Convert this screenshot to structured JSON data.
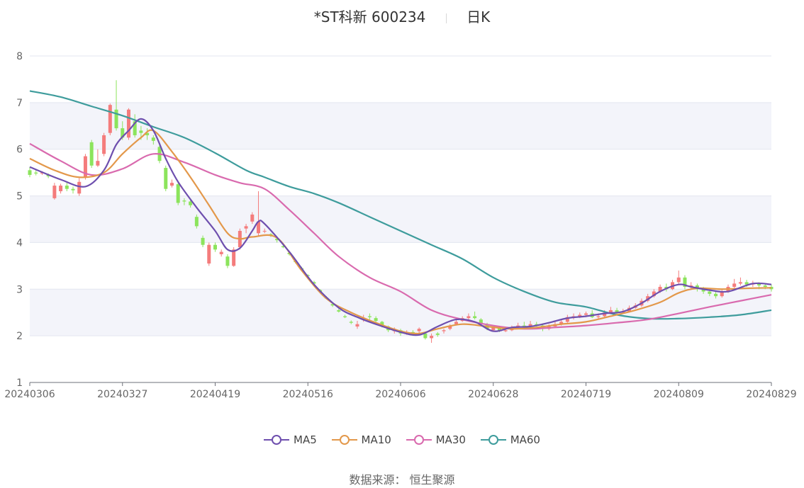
{
  "header": {
    "stock_name": "*ST科新 600234",
    "period": "日K"
  },
  "footer": {
    "source_label": "数据来源：",
    "source_name": "恒生聚源"
  },
  "colors": {
    "up": "#F47C7C",
    "down": "#8CE45C",
    "ma5": "#6E4FAE",
    "ma10": "#E3984A",
    "ma30": "#D96AAE",
    "ma60": "#3E9C9C",
    "band": "#F3F4FA",
    "grid": "#E3E6F0"
  },
  "chart_data": {
    "type": "candlestick",
    "title": "*ST科新 600234 日K",
    "ylim": [
      1,
      8
    ],
    "yticks": [
      1,
      2,
      3,
      4,
      5,
      6,
      7,
      8
    ],
    "xticks": [
      "20240306",
      "20240327",
      "20240419",
      "20240516",
      "20240606",
      "20240628",
      "20240719",
      "20240809",
      "20240829"
    ],
    "xtick_index": [
      0,
      15,
      30,
      45,
      60,
      75,
      90,
      105,
      120
    ],
    "legend": [
      "MA5",
      "MA10",
      "MA30",
      "MA60"
    ],
    "candles": [
      [
        5.55,
        5.45,
        5.62,
        5.4
      ],
      [
        5.5,
        5.48,
        5.55,
        5.44
      ],
      [
        5.48,
        5.5,
        5.53,
        5.45
      ],
      [
        5.45,
        5.42,
        5.48,
        5.38
      ],
      [
        4.95,
        5.22,
        5.28,
        4.92
      ],
      [
        5.1,
        5.22,
        5.26,
        5.05
      ],
      [
        5.22,
        5.15,
        5.28,
        5.1
      ],
      [
        5.15,
        5.12,
        5.2,
        5.05
      ],
      [
        5.05,
        5.3,
        5.38,
        5.0
      ],
      [
        5.4,
        5.85,
        5.9,
        5.35
      ],
      [
        6.15,
        5.65,
        6.2,
        5.6
      ],
      [
        5.65,
        5.75,
        6.0,
        5.62
      ],
      [
        5.9,
        6.3,
        6.35,
        5.85
      ],
      [
        6.35,
        6.95,
        6.98,
        6.3
      ],
      [
        6.85,
        6.45,
        7.48,
        6.4
      ],
      [
        6.45,
        6.25,
        6.6,
        6.2
      ],
      [
        6.25,
        6.85,
        6.88,
        6.2
      ],
      [
        6.6,
        6.3,
        6.75,
        6.25
      ],
      [
        6.4,
        6.35,
        6.5,
        6.2
      ],
      [
        6.35,
        6.3,
        6.45,
        6.2
      ],
      [
        6.25,
        6.18,
        6.3,
        6.1
      ],
      [
        6.05,
        5.75,
        6.1,
        5.7
      ],
      [
        5.6,
        5.15,
        5.65,
        5.1
      ],
      [
        5.22,
        5.28,
        5.35,
        5.18
      ],
      [
        5.25,
        4.85,
        5.3,
        4.8
      ],
      [
        4.9,
        4.88,
        4.95,
        4.8
      ],
      [
        4.88,
        4.8,
        4.95,
        4.75
      ],
      [
        4.55,
        4.35,
        4.6,
        4.3
      ],
      [
        4.1,
        3.95,
        4.15,
        3.9
      ],
      [
        3.55,
        3.95,
        4.0,
        3.5
      ],
      [
        3.95,
        3.85,
        4.0,
        3.8
      ],
      [
        3.75,
        3.8,
        3.85,
        3.7
      ],
      [
        3.7,
        3.5,
        3.75,
        3.45
      ],
      [
        3.5,
        3.85,
        3.9,
        3.48
      ],
      [
        3.9,
        4.25,
        4.3,
        3.85
      ],
      [
        4.3,
        4.35,
        4.4,
        4.2
      ],
      [
        4.45,
        4.6,
        4.65,
        4.4
      ],
      [
        4.2,
        4.45,
        5.1,
        4.15
      ],
      [
        4.25,
        4.25,
        4.3,
        4.2
      ],
      [
        4.18,
        4.15,
        4.2,
        4.12
      ],
      [
        4.08,
        4.05,
        4.1,
        4.0
      ],
      [
        3.92,
        3.9,
        3.95,
        3.88
      ],
      [
        3.78,
        3.75,
        3.8,
        3.72
      ],
      [
        3.6,
        3.58,
        3.62,
        3.55
      ],
      [
        3.45,
        3.42,
        3.48,
        3.4
      ],
      [
        3.3,
        3.28,
        3.32,
        3.25
      ],
      [
        3.15,
        3.12,
        3.18,
        3.1
      ],
      [
        2.98,
        2.95,
        3.0,
        2.92
      ],
      [
        2.82,
        2.8,
        2.85,
        2.78
      ],
      [
        2.68,
        2.65,
        2.7,
        2.62
      ],
      [
        2.55,
        2.52,
        2.58,
        2.5
      ],
      [
        2.42,
        2.4,
        2.45,
        2.38
      ],
      [
        2.3,
        2.28,
        2.33,
        2.25
      ],
      [
        2.2,
        2.25,
        2.32,
        2.15
      ],
      [
        2.35,
        2.38,
        2.45,
        2.3
      ],
      [
        2.42,
        2.4,
        2.48,
        2.35
      ],
      [
        2.38,
        2.32,
        2.42,
        2.28
      ],
      [
        2.3,
        2.22,
        2.32,
        2.18
      ],
      [
        2.2,
        2.12,
        2.22,
        2.08
      ],
      [
        2.1,
        2.15,
        2.18,
        2.05
      ],
      [
        2.12,
        2.05,
        2.15,
        2.0
      ],
      [
        2.05,
        2.08,
        2.12,
        2.02
      ],
      [
        2.08,
        2.05,
        2.12,
        2.0
      ],
      [
        2.1,
        2.15,
        2.18,
        2.05
      ],
      [
        2.05,
        1.95,
        2.08,
        1.92
      ],
      [
        1.95,
        2.0,
        2.05,
        1.85
      ],
      [
        2.05,
        2.02,
        2.08,
        1.98
      ],
      [
        2.1,
        2.12,
        2.15,
        2.05
      ],
      [
        2.15,
        2.22,
        2.25,
        2.12
      ],
      [
        2.25,
        2.3,
        2.35,
        2.22
      ],
      [
        2.32,
        2.38,
        2.42,
        2.3
      ],
      [
        2.38,
        2.42,
        2.48,
        2.35
      ],
      [
        2.42,
        2.38,
        2.52,
        2.35
      ],
      [
        2.35,
        2.25,
        2.38,
        2.22
      ],
      [
        2.25,
        2.15,
        2.28,
        2.12
      ],
      [
        2.12,
        2.18,
        2.22,
        2.1
      ],
      [
        2.18,
        2.1,
        2.2,
        2.08
      ],
      [
        2.1,
        2.12,
        2.15,
        2.08
      ],
      [
        2.12,
        2.18,
        2.22,
        2.1
      ],
      [
        2.18,
        2.22,
        2.28,
        2.15
      ],
      [
        2.22,
        2.2,
        2.3,
        2.18
      ],
      [
        2.2,
        2.25,
        2.32,
        2.18
      ],
      [
        2.25,
        2.22,
        2.3,
        2.2
      ],
      [
        2.22,
        2.15,
        2.25,
        2.1
      ],
      [
        2.15,
        2.2,
        2.25,
        2.12
      ],
      [
        2.2,
        2.25,
        2.3,
        2.18
      ],
      [
        2.25,
        2.3,
        2.35,
        2.22
      ],
      [
        2.3,
        2.4,
        2.45,
        2.28
      ],
      [
        2.4,
        2.42,
        2.48,
        2.35
      ],
      [
        2.42,
        2.45,
        2.5,
        2.38
      ],
      [
        2.45,
        2.48,
        2.52,
        2.4
      ],
      [
        2.48,
        2.4,
        2.55,
        2.38
      ],
      [
        2.4,
        2.42,
        2.48,
        2.35
      ],
      [
        2.42,
        2.5,
        2.55,
        2.4
      ],
      [
        2.5,
        2.55,
        2.62,
        2.48
      ],
      [
        2.55,
        2.5,
        2.6,
        2.45
      ],
      [
        2.5,
        2.52,
        2.58,
        2.48
      ],
      [
        2.52,
        2.6,
        2.65,
        2.5
      ],
      [
        2.6,
        2.65,
        2.7,
        2.58
      ],
      [
        2.65,
        2.75,
        2.8,
        2.62
      ],
      [
        2.75,
        2.85,
        2.9,
        2.72
      ],
      [
        2.85,
        2.95,
        3.0,
        2.82
      ],
      [
        2.95,
        3.05,
        3.1,
        2.92
      ],
      [
        3.05,
        3.0,
        3.12,
        2.95
      ],
      [
        3.0,
        3.15,
        3.2,
        2.98
      ],
      [
        3.15,
        3.25,
        3.4,
        3.1
      ],
      [
        3.25,
        3.05,
        3.3,
        3.0
      ],
      [
        3.05,
        3.08,
        3.15,
        3.0
      ],
      [
        3.08,
        3.0,
        3.12,
        2.95
      ],
      [
        3.0,
        2.95,
        3.05,
        2.9
      ],
      [
        2.95,
        2.9,
        3.0,
        2.85
      ],
      [
        2.9,
        2.85,
        2.95,
        2.8
      ],
      [
        2.85,
        2.95,
        3.0,
        2.82
      ],
      [
        2.95,
        3.05,
        3.1,
        2.92
      ],
      [
        3.05,
        3.12,
        3.22,
        3.0
      ],
      [
        3.12,
        3.15,
        3.25,
        3.08
      ],
      [
        3.15,
        3.1,
        3.2,
        3.05
      ],
      [
        3.1,
        3.12,
        3.18,
        3.05
      ],
      [
        3.12,
        3.08,
        3.15,
        3.0
      ],
      [
        3.08,
        3.05,
        3.12,
        3.0
      ],
      [
        3.05,
        3.0,
        3.1,
        2.95
      ]
    ],
    "ma5": [
      [
        0,
        5.62
      ],
      [
        5,
        5.35
      ],
      [
        9,
        5.2
      ],
      [
        12,
        5.55
      ],
      [
        14,
        6.1
      ],
      [
        16,
        6.4
      ],
      [
        18,
        6.65
      ],
      [
        20,
        6.4
      ],
      [
        22,
        5.8
      ],
      [
        24,
        5.3
      ],
      [
        27,
        4.75
      ],
      [
        30,
        4.25
      ],
      [
        32,
        3.85
      ],
      [
        34,
        3.88
      ],
      [
        36,
        4.25
      ],
      [
        37,
        4.45
      ],
      [
        38,
        4.4
      ],
      [
        42,
        3.8
      ],
      [
        46,
        3.1
      ],
      [
        50,
        2.6
      ],
      [
        53,
        2.4
      ],
      [
        56,
        2.25
      ],
      [
        60,
        2.08
      ],
      [
        63,
        2.02
      ],
      [
        66,
        2.2
      ],
      [
        69,
        2.35
      ],
      [
        72,
        2.3
      ],
      [
        75,
        2.1
      ],
      [
        78,
        2.18
      ],
      [
        81,
        2.2
      ],
      [
        84,
        2.28
      ],
      [
        87,
        2.38
      ],
      [
        90,
        2.42
      ],
      [
        93,
        2.48
      ],
      [
        96,
        2.52
      ],
      [
        99,
        2.7
      ],
      [
        102,
        2.95
      ],
      [
        105,
        3.1
      ],
      [
        107,
        3.05
      ],
      [
        110,
        2.98
      ],
      [
        113,
        2.95
      ],
      [
        117,
        3.12
      ],
      [
        120,
        3.1
      ]
    ],
    "ma10": [
      [
        0,
        5.8
      ],
      [
        4,
        5.55
      ],
      [
        8,
        5.4
      ],
      [
        12,
        5.5
      ],
      [
        15,
        5.9
      ],
      [
        18,
        6.25
      ],
      [
        20,
        6.4
      ],
      [
        23,
        5.95
      ],
      [
        26,
        5.4
      ],
      [
        29,
        4.8
      ],
      [
        32,
        4.2
      ],
      [
        34,
        4.08
      ],
      [
        36,
        4.12
      ],
      [
        40,
        4.1
      ],
      [
        44,
        3.4
      ],
      [
        48,
        2.8
      ],
      [
        52,
        2.5
      ],
      [
        56,
        2.28
      ],
      [
        60,
        2.1
      ],
      [
        63,
        2.05
      ],
      [
        66,
        2.15
      ],
      [
        70,
        2.25
      ],
      [
        74,
        2.2
      ],
      [
        78,
        2.15
      ],
      [
        82,
        2.18
      ],
      [
        86,
        2.25
      ],
      [
        90,
        2.3
      ],
      [
        94,
        2.42
      ],
      [
        98,
        2.55
      ],
      [
        102,
        2.72
      ],
      [
        105,
        2.92
      ],
      [
        108,
        3.02
      ],
      [
        112,
        3.0
      ],
      [
        116,
        3.02
      ],
      [
        120,
        3.03
      ]
    ],
    "ma30": [
      [
        0,
        6.12
      ],
      [
        5,
        5.75
      ],
      [
        10,
        5.45
      ],
      [
        15,
        5.58
      ],
      [
        20,
        5.9
      ],
      [
        25,
        5.72
      ],
      [
        30,
        5.45
      ],
      [
        34,
        5.28
      ],
      [
        38,
        5.15
      ],
      [
        42,
        4.7
      ],
      [
        46,
        4.2
      ],
      [
        50,
        3.7
      ],
      [
        55,
        3.25
      ],
      [
        60,
        2.95
      ],
      [
        65,
        2.55
      ],
      [
        70,
        2.35
      ],
      [
        75,
        2.22
      ],
      [
        80,
        2.15
      ],
      [
        85,
        2.18
      ],
      [
        90,
        2.22
      ],
      [
        95,
        2.28
      ],
      [
        100,
        2.35
      ],
      [
        105,
        2.48
      ],
      [
        110,
        2.62
      ],
      [
        115,
        2.75
      ],
      [
        120,
        2.88
      ]
    ],
    "ma60": [
      [
        0,
        7.25
      ],
      [
        5,
        7.12
      ],
      [
        10,
        6.92
      ],
      [
        15,
        6.72
      ],
      [
        20,
        6.48
      ],
      [
        25,
        6.25
      ],
      [
        30,
        5.92
      ],
      [
        35,
        5.55
      ],
      [
        38,
        5.4
      ],
      [
        42,
        5.2
      ],
      [
        46,
        5.05
      ],
      [
        50,
        4.85
      ],
      [
        55,
        4.55
      ],
      [
        60,
        4.25
      ],
      [
        65,
        3.95
      ],
      [
        70,
        3.65
      ],
      [
        75,
        3.25
      ],
      [
        80,
        2.95
      ],
      [
        85,
        2.72
      ],
      [
        90,
        2.62
      ],
      [
        95,
        2.45
      ],
      [
        100,
        2.37
      ],
      [
        105,
        2.37
      ],
      [
        110,
        2.4
      ],
      [
        115,
        2.45
      ],
      [
        120,
        2.55
      ]
    ]
  }
}
